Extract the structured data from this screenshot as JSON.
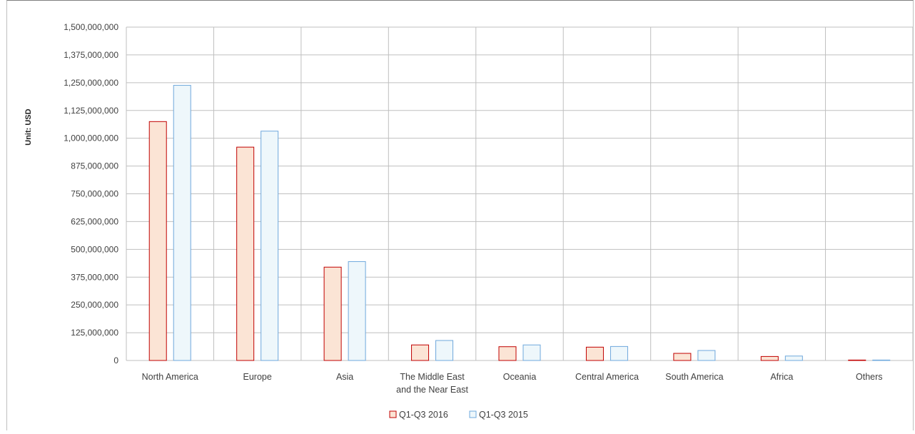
{
  "chart_data": {
    "type": "bar",
    "ylabel": "Unit: USD",
    "ylim": [
      0,
      1500000000
    ],
    "y_ticks": [
      0,
      125000000,
      250000000,
      375000000,
      500000000,
      625000000,
      750000000,
      875000000,
      1000000000,
      1125000000,
      1250000000,
      1375000000,
      1500000000
    ],
    "y_tick_labels": [
      "0",
      "125,000,000",
      "250,000,000",
      "375,000,000",
      "500,000,000",
      "625,000,000",
      "750,000,000",
      "875,000,000",
      "1,000,000,000",
      "1,125,000,000",
      "1,250,000,000",
      "1,375,000,000",
      "1,500,000,000"
    ],
    "categories": [
      [
        "North America"
      ],
      [
        "Europe"
      ],
      [
        "Asia"
      ],
      [
        "The Middle East",
        "and the Near East"
      ],
      [
        "Oceania"
      ],
      [
        "Central America"
      ],
      [
        "South America"
      ],
      [
        "Africa"
      ],
      [
        "Others"
      ]
    ],
    "series": [
      {
        "name": "Q1-Q3 2016",
        "fill": "#fbe4d5",
        "stroke": "#c00000",
        "values": [
          1075000000,
          960000000,
          420000000,
          70000000,
          62000000,
          60000000,
          32000000,
          18000000,
          2000000
        ]
      },
      {
        "name": "Q1-Q3 2015",
        "fill": "#eef7fb",
        "stroke": "#6fa8dc",
        "values": [
          1238000000,
          1032000000,
          445000000,
          90000000,
          70000000,
          63000000,
          45000000,
          20000000,
          2000000
        ]
      }
    ],
    "grid": true,
    "legend_position": "bottom-center"
  }
}
